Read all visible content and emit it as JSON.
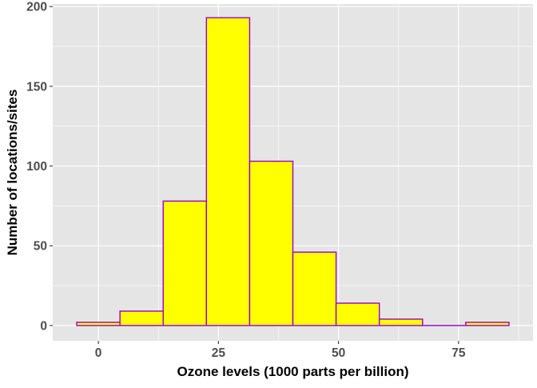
{
  "chart_data": {
    "type": "bar",
    "title": "",
    "xlabel": "Ozone levels (1000 parts per billion)",
    "ylabel": "Number of locations/sites",
    "xlim": [
      -9.5,
      90.5
    ],
    "ylim": [
      -9.6,
      201.6
    ],
    "x_ticks": [
      {
        "value": 0,
        "label": "0"
      },
      {
        "value": 25,
        "label": "25"
      },
      {
        "value": 50,
        "label": "50"
      },
      {
        "value": 75,
        "label": "75"
      }
    ],
    "y_ticks": [
      {
        "value": 0,
        "label": "0"
      },
      {
        "value": 50,
        "label": "50"
      },
      {
        "value": 100,
        "label": "100"
      },
      {
        "value": 150,
        "label": "150"
      },
      {
        "value": 200,
        "label": "200"
      }
    ],
    "bins": [
      {
        "x_start": -4.5,
        "x_end": 4.5,
        "count": 2
      },
      {
        "x_start": 4.5,
        "x_end": 13.5,
        "count": 9
      },
      {
        "x_start": 13.5,
        "x_end": 22.5,
        "count": 78
      },
      {
        "x_start": 22.5,
        "x_end": 31.5,
        "count": 193
      },
      {
        "x_start": 31.5,
        "x_end": 40.5,
        "count": 103
      },
      {
        "x_start": 40.5,
        "x_end": 49.5,
        "count": 46
      },
      {
        "x_start": 49.5,
        "x_end": 58.5,
        "count": 14
      },
      {
        "x_start": 58.5,
        "x_end": 67.5,
        "count": 4
      },
      {
        "x_start": 67.5,
        "x_end": 76.5,
        "count": 0
      },
      {
        "x_start": 76.5,
        "x_end": 85.5,
        "count": 2
      }
    ],
    "grid": true,
    "colors": {
      "panel_background": "#e5e5e5",
      "gridline": "#ffffff",
      "bar_fill": "#ffff00",
      "bar_outline": "#9900cc",
      "tick_text": "#4d4d4d",
      "tick_mark": "#333333",
      "axis_title": "#000000"
    }
  }
}
